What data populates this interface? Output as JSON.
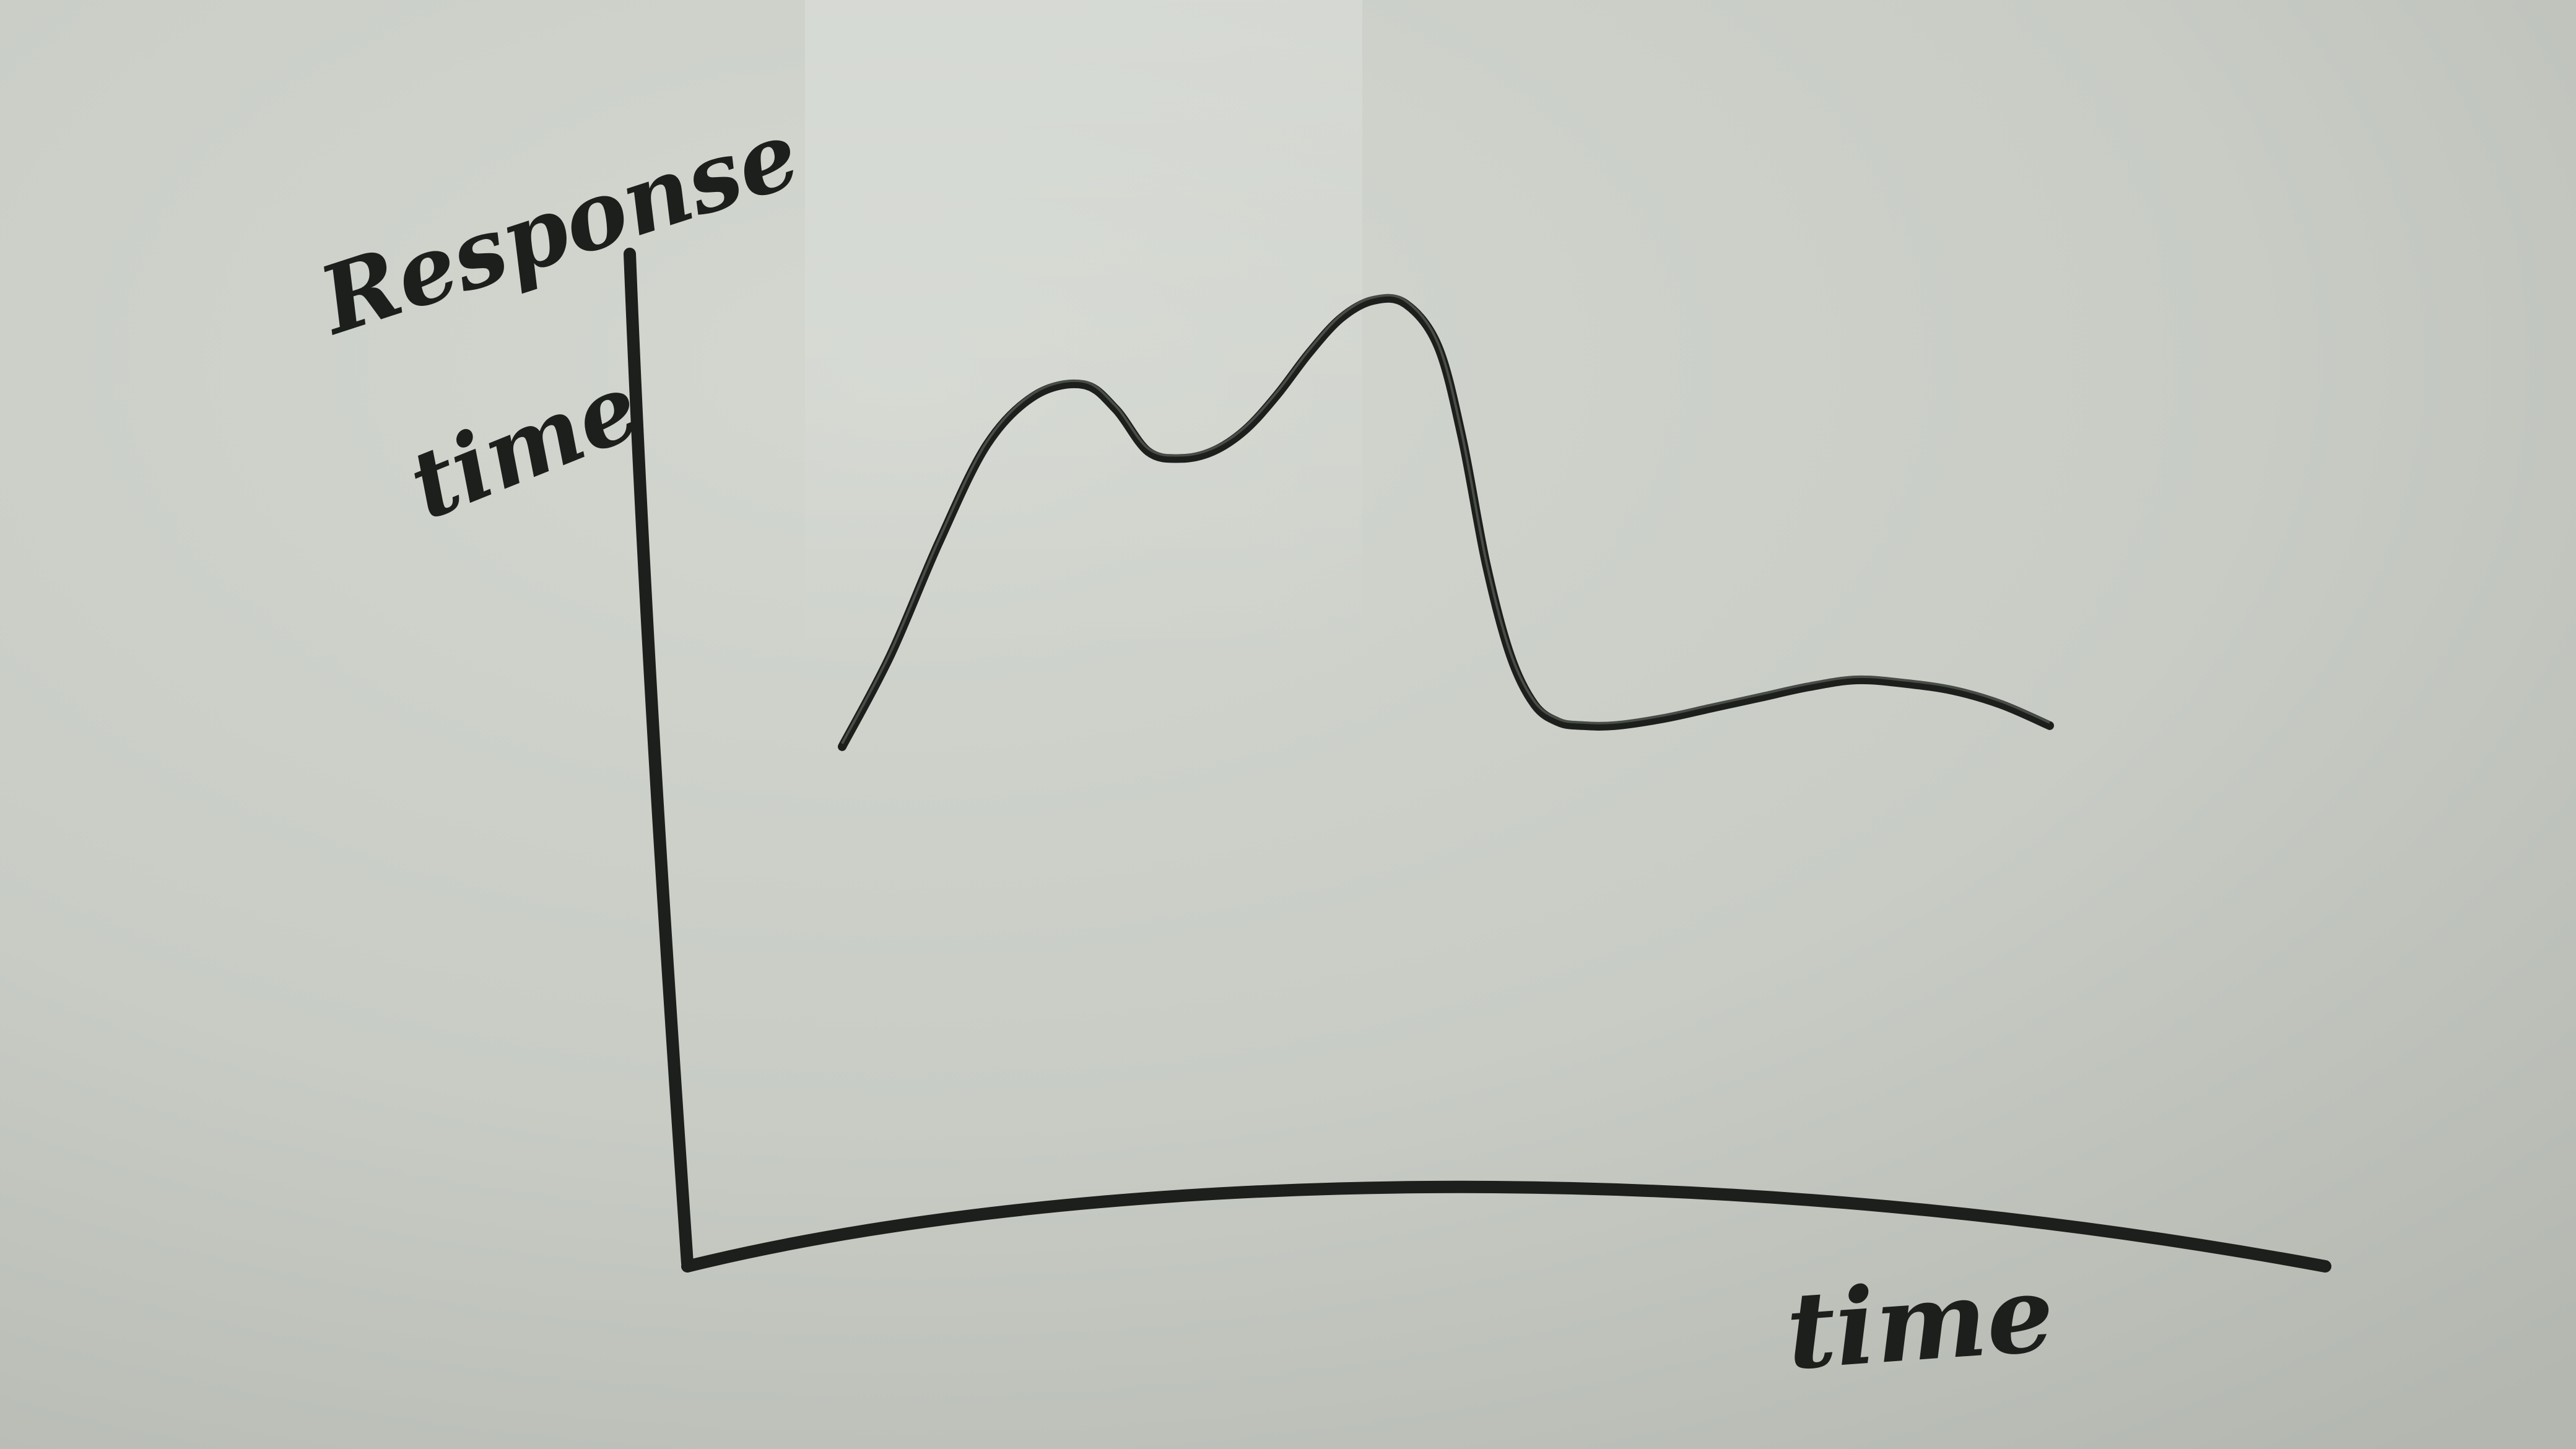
{
  "chart_data": {
    "type": "line",
    "ylabel": "Response time",
    "xlabel": "time",
    "xlim": [
      0,
      100
    ],
    "ylim": [
      0,
      100
    ],
    "grid": false,
    "series": [
      {
        "x": [
          0,
          3,
          6,
          9,
          12,
          15,
          17,
          19,
          21,
          23,
          25,
          27,
          29,
          31,
          33,
          35,
          37,
          38.5,
          40,
          41.5,
          43,
          44.5,
          46,
          48,
          51,
          54,
          57,
          60,
          63,
          66,
          69,
          72,
          75
        ],
        "y": [
          29,
          42,
          58,
          72,
          79,
          80.5,
          77,
          71,
          70,
          71,
          74,
          79,
          85,
          90,
          92.5,
          92,
          86,
          73,
          55,
          42,
          35,
          32.5,
          32,
          32,
          33,
          34.5,
          36,
          37.5,
          38.5,
          38,
          37,
          35,
          32
        ]
      }
    ],
    "colors": {
      "ink": "#1c1f1c",
      "board": "#c9cdc6"
    }
  }
}
